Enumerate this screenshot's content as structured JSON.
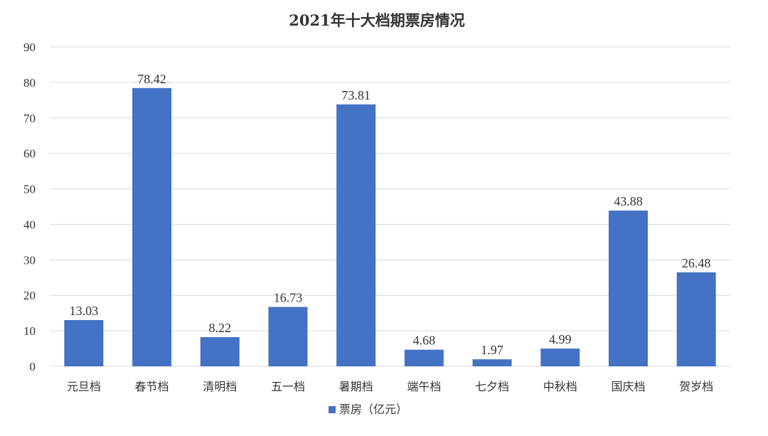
{
  "chart_data": {
    "type": "bar",
    "title": "2021年十大档期票房情况",
    "categories": [
      "元旦档",
      "春节档",
      "清明档",
      "五一档",
      "暑期档",
      "端午档",
      "七夕档",
      "中秋档",
      "国庆档",
      "贺岁档"
    ],
    "series": [
      {
        "name": "票房（亿元）",
        "values": [
          13.03,
          78.42,
          8.22,
          16.73,
          73.81,
          4.68,
          1.97,
          4.99,
          43.88,
          26.48
        ],
        "labels": [
          "13.03",
          "78.42",
          "8.22",
          "16.73",
          "73.81",
          "4.68",
          "1.97",
          "4.99",
          "43.88",
          "26.48"
        ],
        "color": "#4472C4"
      }
    ],
    "ylim": [
      0,
      90
    ],
    "yticks": [
      "0",
      "10",
      "20",
      "30",
      "40",
      "50",
      "60",
      "70",
      "80",
      "90"
    ],
    "grid": true,
    "legend_position": "bottom",
    "gridline_color": "#d9d9d9"
  }
}
